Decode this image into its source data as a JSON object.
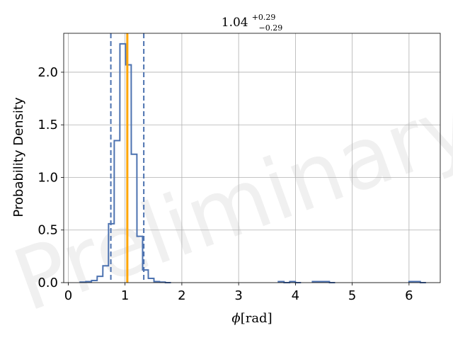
{
  "chart_data": {
    "type": "histogram",
    "title": {
      "base": "1.04",
      "sup": "+0.29",
      "sub": "−0.29"
    },
    "xlabel": {
      "symbol": "ϕ",
      "unit": "[rad]"
    },
    "ylabel": "Probability Density",
    "xlim": [
      -0.08,
      6.55
    ],
    "ylim": [
      0,
      2.37
    ],
    "xticks": [
      0,
      1,
      2,
      3,
      4,
      5,
      6
    ],
    "yticks": [
      0.0,
      0.5,
      1.0,
      1.5,
      2.0
    ],
    "xtick_labels": [
      "0",
      "1",
      "2",
      "3",
      "4",
      "5",
      "6"
    ],
    "ytick_labels": [
      "0.0",
      "0.5",
      "1.0",
      "1.5",
      "2.0"
    ],
    "grid": true,
    "bin_width": 0.0984,
    "bins": [
      {
        "x0": 0.21,
        "h": 0.005
      },
      {
        "x0": 0.31,
        "h": 0.01
      },
      {
        "x0": 0.41,
        "h": 0.02
      },
      {
        "x0": 0.51,
        "h": 0.06
      },
      {
        "x0": 0.61,
        "h": 0.16
      },
      {
        "x0": 0.71,
        "h": 0.56
      },
      {
        "x0": 0.81,
        "h": 1.35
      },
      {
        "x0": 0.91,
        "h": 2.27
      },
      {
        "x0": 1.01,
        "h": 2.07
      },
      {
        "x0": 1.11,
        "h": 1.22
      },
      {
        "x0": 1.21,
        "h": 0.44
      },
      {
        "x0": 1.31,
        "h": 0.12
      },
      {
        "x0": 1.41,
        "h": 0.04
      },
      {
        "x0": 1.51,
        "h": 0.01
      },
      {
        "x0": 1.61,
        "h": 0.005
      },
      {
        "x0": 1.71,
        "h": 0.0
      },
      {
        "x0": 3.7,
        "h": 0.01
      },
      {
        "x0": 3.8,
        "h": 0.0
      },
      {
        "x0": 3.9,
        "h": 0.01
      },
      {
        "x0": 4.0,
        "h": 0.0
      },
      {
        "x0": 4.3,
        "h": 0.01
      },
      {
        "x0": 4.4,
        "h": 0.01
      },
      {
        "x0": 4.5,
        "h": 0.01
      },
      {
        "x0": 4.6,
        "h": 0.0
      },
      {
        "x0": 6.0,
        "h": 0.01
      },
      {
        "x0": 6.1,
        "h": 0.01
      },
      {
        "x0": 6.2,
        "h": 0.0
      }
    ],
    "median": 1.04,
    "lower": 0.75,
    "upper": 1.33,
    "colors": {
      "histogram": "#4c72b0",
      "median": "#ffa500",
      "bounds": "#4c72b0",
      "grid": "#b0b0b0"
    },
    "watermark": "Preliminary"
  }
}
